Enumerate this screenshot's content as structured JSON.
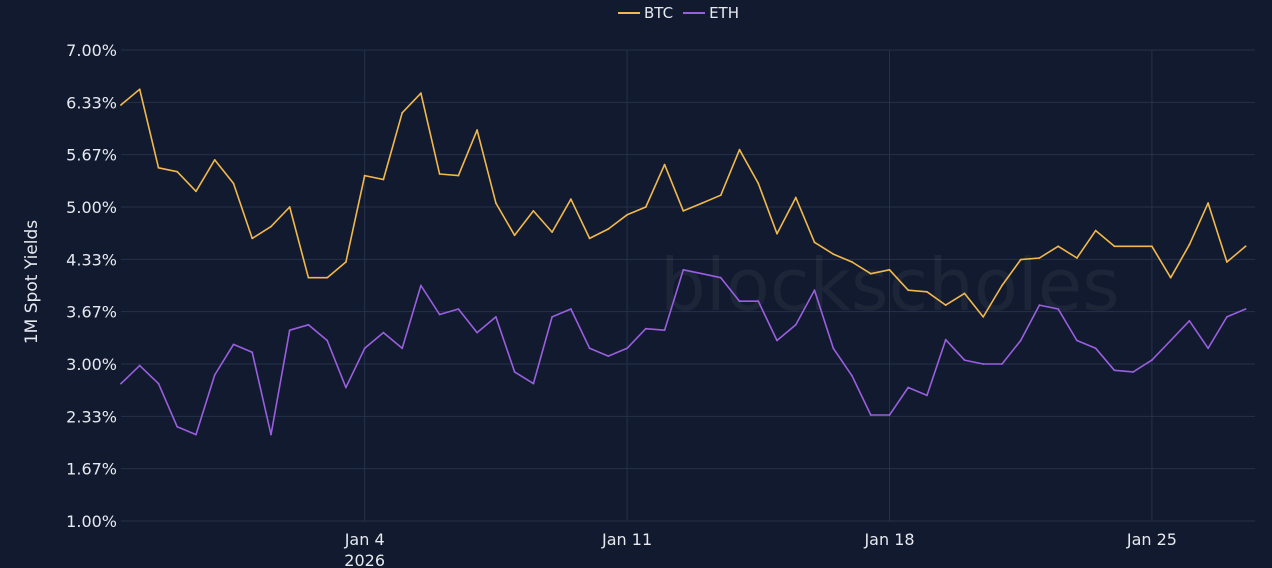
{
  "chart_data": {
    "type": "line",
    "title": "",
    "ylabel": "1M Spot Yields",
    "xlabel": "",
    "ylim": [
      1.0,
      7.0
    ],
    "xlim": [
      "2025-12-28 12:00",
      "2026-01-27 18:00"
    ],
    "grid": true,
    "legend_position": "top-center",
    "watermark": "blockscholes",
    "yticks": [
      {
        "value": 1.0,
        "label": "1.00%"
      },
      {
        "value": 1.6667,
        "label": "1.67%"
      },
      {
        "value": 2.3333,
        "label": "2.33%"
      },
      {
        "value": 3.0,
        "label": "3.00%"
      },
      {
        "value": 3.6667,
        "label": "3.67%"
      },
      {
        "value": 4.3333,
        "label": "4.33%"
      },
      {
        "value": 5.0,
        "label": "5.00%"
      },
      {
        "value": 5.6667,
        "label": "5.67%"
      },
      {
        "value": 6.3333,
        "label": "6.33%"
      },
      {
        "value": 7.0,
        "label": "7.00%"
      }
    ],
    "xticks": [
      {
        "value": "2026-01-04 00:00",
        "label": "Jan 4",
        "sublabel": "2026"
      },
      {
        "value": "2026-01-11 00:00",
        "label": "Jan 11",
        "sublabel": ""
      },
      {
        "value": "2026-01-18 00:00",
        "label": "Jan 18",
        "sublabel": ""
      },
      {
        "value": "2026-01-25 00:00",
        "label": "Jan 25",
        "sublabel": ""
      }
    ],
    "x": [
      "2025-12-28 12:00",
      "2025-12-29 00:00",
      "2025-12-29 12:00",
      "2025-12-30 00:00",
      "2025-12-30 12:00",
      "2025-12-31 00:00",
      "2025-12-31 12:00",
      "2026-01-01 00:00",
      "2026-01-01 12:00",
      "2026-01-02 00:00",
      "2026-01-02 12:00",
      "2026-01-03 00:00",
      "2026-01-03 12:00",
      "2026-01-04 00:00",
      "2026-01-04 12:00",
      "2026-01-05 00:00",
      "2026-01-05 12:00",
      "2026-01-06 00:00",
      "2026-01-06 12:00",
      "2026-01-07 00:00",
      "2026-01-07 12:00",
      "2026-01-08 00:00",
      "2026-01-08 12:00",
      "2026-01-09 00:00",
      "2026-01-09 12:00",
      "2026-01-10 00:00",
      "2026-01-10 12:00",
      "2026-01-11 00:00",
      "2026-01-11 12:00",
      "2026-01-12 00:00",
      "2026-01-12 12:00",
      "2026-01-13 00:00",
      "2026-01-13 12:00",
      "2026-01-14 00:00",
      "2026-01-14 12:00",
      "2026-01-15 00:00",
      "2026-01-15 12:00",
      "2026-01-16 00:00",
      "2026-01-16 12:00",
      "2026-01-17 00:00",
      "2026-01-17 12:00",
      "2026-01-18 00:00",
      "2026-01-18 12:00",
      "2026-01-19 00:00",
      "2026-01-19 12:00",
      "2026-01-20 00:00",
      "2026-01-20 12:00",
      "2026-01-21 00:00",
      "2026-01-21 12:00",
      "2026-01-22 00:00",
      "2026-01-22 12:00",
      "2026-01-23 00:00",
      "2026-01-23 12:00",
      "2026-01-24 00:00",
      "2026-01-24 12:00",
      "2026-01-25 00:00",
      "2026-01-25 12:00",
      "2026-01-26 00:00",
      "2026-01-26 12:00",
      "2026-01-27 00:00",
      "2026-01-27 12:00"
    ],
    "series": [
      {
        "name": "BTC",
        "color": "#f2b84b",
        "values": [
          6.3,
          6.5,
          5.5,
          5.45,
          5.2,
          5.6,
          5.3,
          4.6,
          4.75,
          5.0,
          4.1,
          4.1,
          4.3,
          5.4,
          5.35,
          6.2,
          6.45,
          5.42,
          5.4,
          5.98,
          5.05,
          4.64,
          4.95,
          4.68,
          5.1,
          4.6,
          4.72,
          4.9,
          5.0,
          5.54,
          4.95,
          5.05,
          5.15,
          5.73,
          5.3,
          4.66,
          5.12,
          4.55,
          4.4,
          4.3,
          4.15,
          4.2,
          3.94,
          3.92,
          3.75,
          3.9,
          3.6,
          4.0,
          4.33,
          4.35,
          4.5,
          4.35,
          4.7,
          4.5,
          4.5,
          4.5,
          4.1,
          4.52,
          5.05,
          4.3,
          4.5
        ]
      },
      {
        "name": "ETH",
        "color": "#9a5fe0",
        "values": [
          2.75,
          2.98,
          2.75,
          2.2,
          2.1,
          2.86,
          3.25,
          3.15,
          2.1,
          3.43,
          3.5,
          3.3,
          2.7,
          3.2,
          3.4,
          3.2,
          4.0,
          3.63,
          3.7,
          3.4,
          3.6,
          2.9,
          2.75,
          3.6,
          3.7,
          3.2,
          3.1,
          3.2,
          3.45,
          3.43,
          4.2,
          4.15,
          4.1,
          3.8,
          3.8,
          3.3,
          3.5,
          3.94,
          3.2,
          2.85,
          2.35,
          2.35,
          2.7,
          2.6,
          3.31,
          3.05,
          3.0,
          3.0,
          3.3,
          3.75,
          3.7,
          3.3,
          3.2,
          2.92,
          2.9,
          3.05,
          3.3,
          3.55,
          3.2,
          3.6,
          3.7
        ]
      }
    ]
  },
  "colors": {
    "background": "#111a2e",
    "grid": "#25324a",
    "text": "#e6e9ef"
  }
}
